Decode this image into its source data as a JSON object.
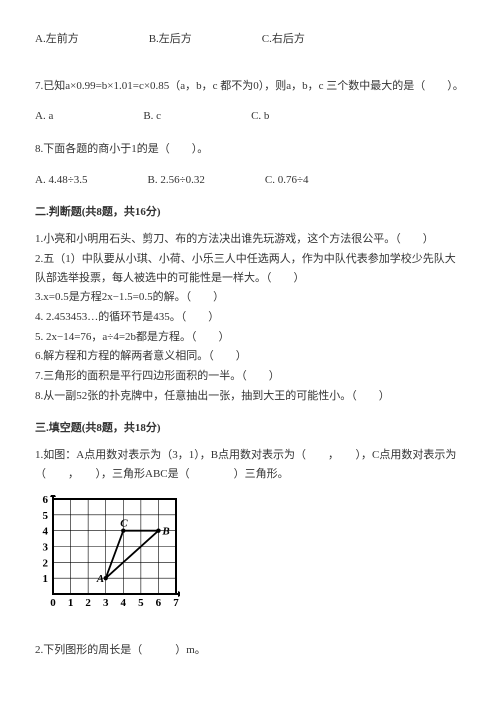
{
  "q6": {
    "optA": "A.左前方",
    "optB": "B.左后方",
    "optC": "C.右后方"
  },
  "q7": {
    "text": "7.已知a×0.99=b×1.01=c×0.85（a，b，c 都不为0），则a，b，c 三个数中最大的是（　　）。",
    "optA": "A. a",
    "optB": "B. c",
    "optC": "C. b"
  },
  "q8": {
    "text": "8.下面各题的商小于1的是（　　）。",
    "optA": "A. 4.48÷3.5",
    "optB": "B. 2.56÷0.32",
    "optC": "C. 0.76÷4"
  },
  "section2": {
    "title": "二.判断题(共8题，共16分)",
    "items": [
      "1.小亮和小明用石头、剪刀、布的方法决出谁先玩游戏，这个方法很公平。（　　）",
      "2.五（1）中队要从小琪、小荷、小乐三人中任选两人，作为中队代表参加学校少先队大队部选举投票，每人被选中的可能性是一样大。（　　）",
      "3.x=0.5是方程2x−1.5=0.5的解。（　　）",
      "4. 2.453453…的循环节是435。（　　）",
      "5. 2x−14=76，a÷4=2b都是方程。（　　）",
      "6.解方程和方程的解两者意义相同。（　　）",
      "7.三角形的面积是平行四边形面积的一半。（　　）",
      "8.从一副52张的扑克牌中，任意抽出一张，抽到大王的可能性小。（　　）"
    ]
  },
  "section3": {
    "title": "三.填空题(共8题，共18分)",
    "q1": "1.如图：A点用数对表示为（3，1），B点用数对表示为（　　，　　），C点用数对表示为（　　，　　），三角形ABC是（　　　　）三角形。",
    "q2": "2.下列图形的周长是（　　　）m。"
  },
  "graph": {
    "xmin": 0,
    "xmax": 7,
    "ymin": 0,
    "ymax": 6,
    "xticks": [
      0,
      1,
      2,
      3,
      4,
      5,
      6,
      7
    ],
    "yticks": [
      1,
      2,
      3,
      4,
      5,
      6
    ],
    "grid_color": "#000",
    "bg_color": "#fff",
    "width": 145,
    "height": 115,
    "points": {
      "A": {
        "x": 3,
        "y": 1,
        "label": "A"
      },
      "B": {
        "x": 6,
        "y": 4,
        "label": "B"
      },
      "C": {
        "x": 4,
        "y": 4,
        "label": "C"
      }
    },
    "line_width": 1.8,
    "tick_fontsize": 11,
    "label_fontsize": 11
  }
}
